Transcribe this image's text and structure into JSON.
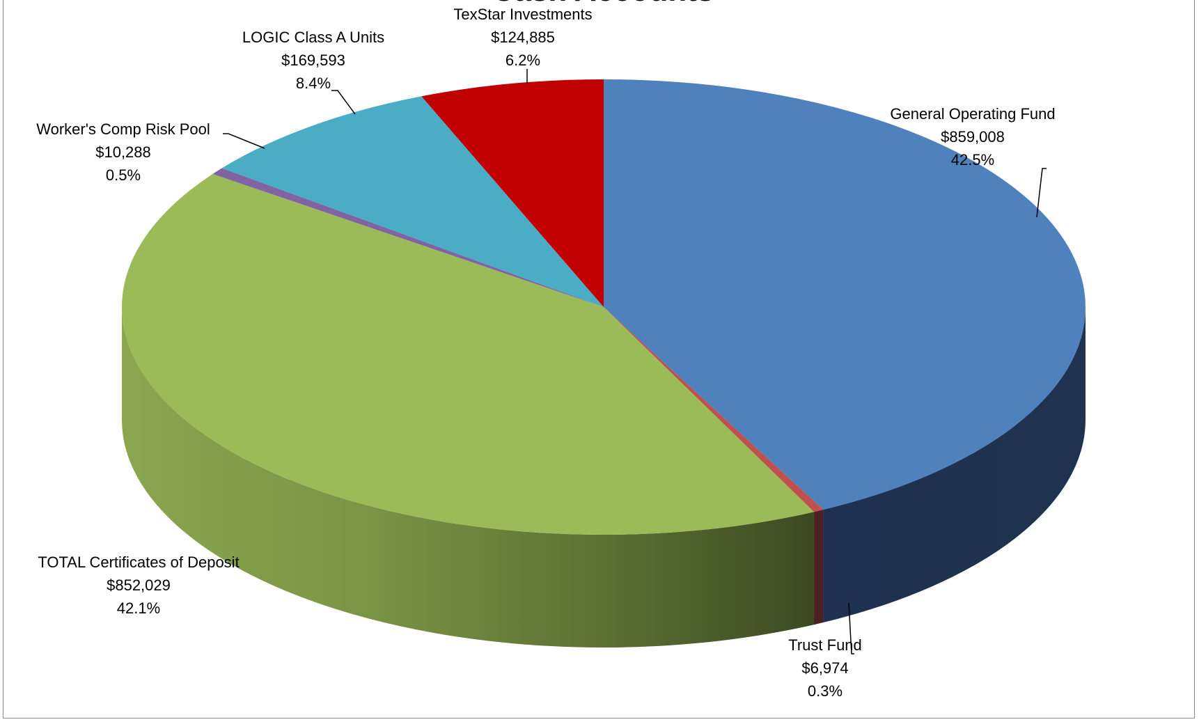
{
  "chart_data": {
    "type": "pie",
    "title": "Cash Accounts",
    "categories": [
      "General Operating Fund",
      "Trust Fund",
      "TOTAL Certificates of Deposit",
      "Worker's Comp Risk Pool",
      "LOGIC Class A Units",
      "TexStar Investments"
    ],
    "values": [
      859008,
      6974,
      852029,
      10288,
      169593,
      124885
    ],
    "value_labels": [
      "$859,008",
      "$6,974",
      "$852,029",
      "$10,288",
      "$169,593",
      "$124,885"
    ],
    "percent_labels": [
      "42.5%",
      "0.3%",
      "42.1%",
      "0.5%",
      "8.4%",
      "6.2%"
    ],
    "colors": [
      "#4f81bd",
      "#c0504d",
      "#9bbb59",
      "#8064a2",
      "#4bacc6",
      "#c00000"
    ],
    "start_angle": 0,
    "direction": "clockwise",
    "legend": "none",
    "style": "3d"
  },
  "labels": [
    {
      "name": "General Operating Fund",
      "value": "$859,008",
      "percent": "42.5%"
    },
    {
      "name": "Trust Fund",
      "value": "$6,974",
      "percent": "0.3%"
    },
    {
      "name": "TOTAL Certificates of Deposit",
      "value": "$852,029",
      "percent": "42.1%"
    },
    {
      "name": "Worker's Comp Risk Pool",
      "value": "$10,288",
      "percent": "0.5%"
    },
    {
      "name": "LOGIC Class A Units",
      "value": "$169,593",
      "percent": "8.4%"
    },
    {
      "name": "TexStar Investments",
      "value": "$124,885",
      "percent": "6.2%"
    }
  ]
}
